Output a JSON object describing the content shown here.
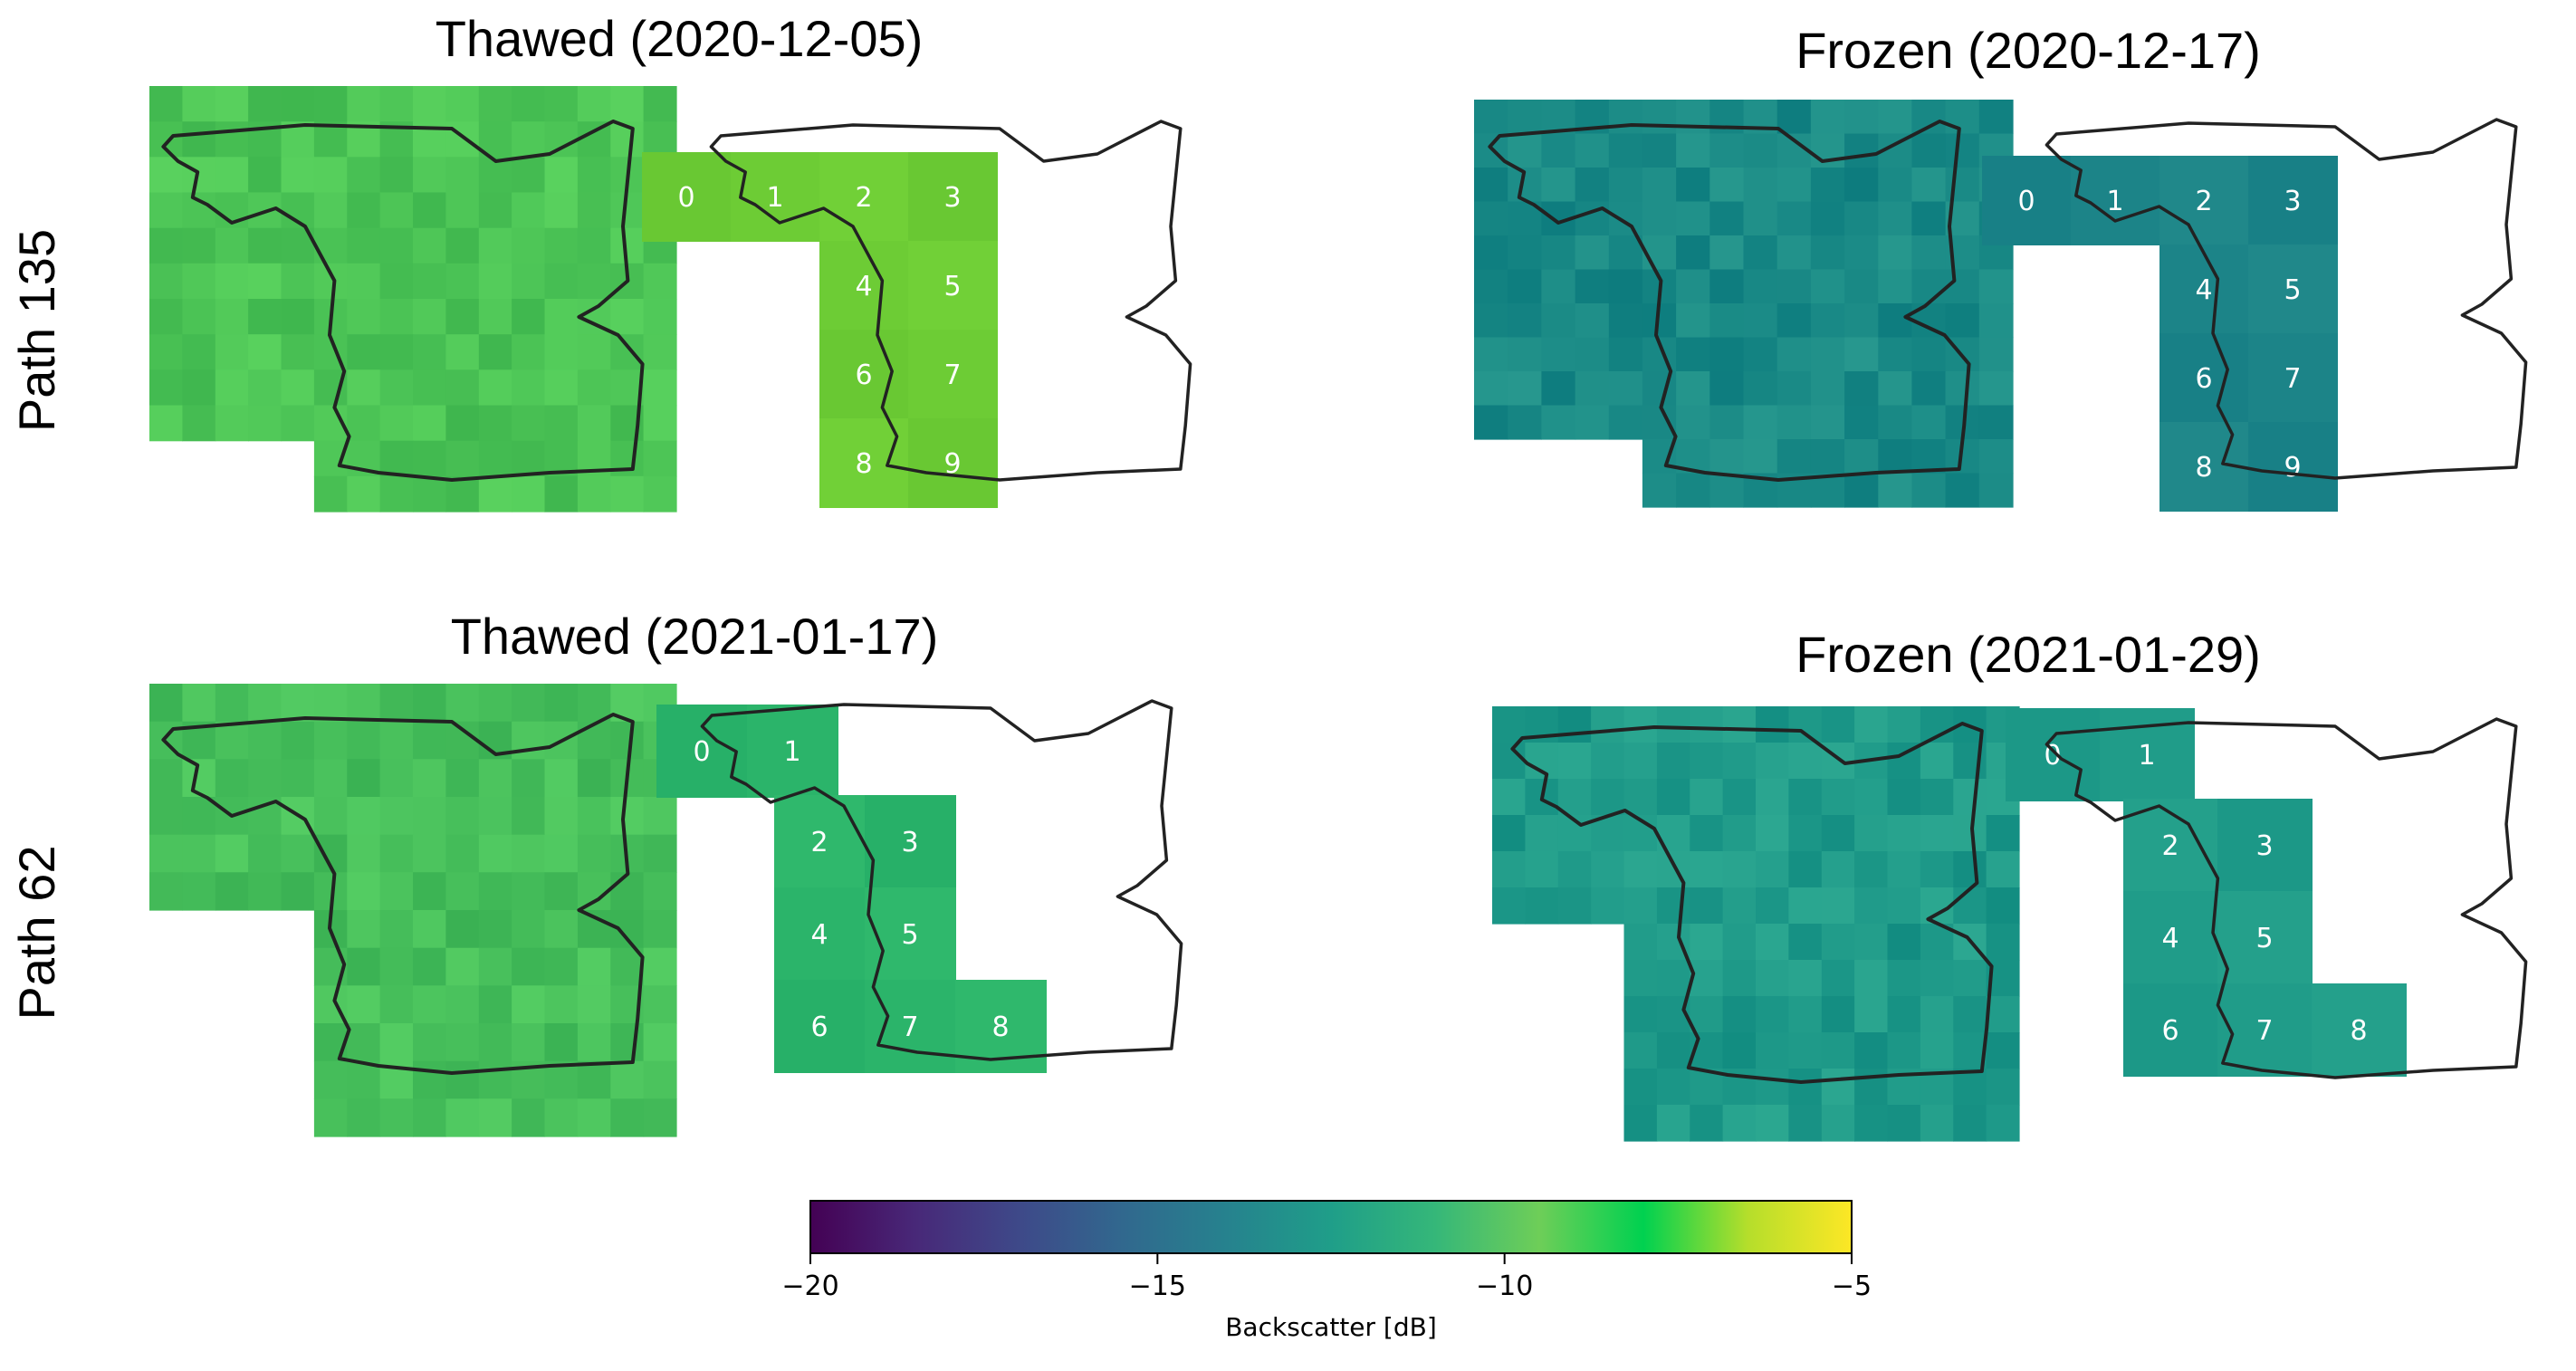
{
  "rows": [
    {
      "label": "Path 135"
    },
    {
      "label": "Path 62"
    }
  ],
  "panels": [
    {
      "title": "Thawed (2020-12-05)",
      "base_color": "#4cc456",
      "cell_color": "#6dcc35",
      "cell_labels": [
        "0",
        "1",
        "2",
        "3",
        "4",
        "5",
        "6",
        "7",
        "8",
        "9"
      ]
    },
    {
      "title": "Frozen (2020-12-17)",
      "base_color": "#1a8a86",
      "cell_color": "#1c8488",
      "cell_labels": [
        "0",
        "1",
        "2",
        "3",
        "4",
        "5",
        "6",
        "7",
        "8",
        "9"
      ]
    },
    {
      "title": "Thawed (2021-01-17)",
      "base_color": "#47bf5b",
      "cell_color": "#2bb46a",
      "cell_labels": [
        "0",
        "1",
        "2",
        "3",
        "4",
        "5",
        "6",
        "7",
        "8"
      ]
    },
    {
      "title": "Frozen (2021-01-29)",
      "base_color": "#1f9a89",
      "cell_color": "#209c89",
      "cell_labels": [
        "0",
        "1",
        "2",
        "3",
        "4",
        "5",
        "6",
        "7",
        "8"
      ]
    }
  ],
  "colorbar": {
    "label": "Backscatter [dB]",
    "min": -20,
    "max": -5,
    "ticks": [
      -20,
      -15,
      -10,
      -5
    ],
    "tick_labels": [
      "−20",
      "−15",
      "−10",
      "−5"
    ],
    "colormap": "viridis",
    "stops": [
      "#440154",
      "#482878",
      "#3e4989",
      "#31688e",
      "#26828e",
      "#1f9e89",
      "#35b779",
      "#6ece58",
      "#00d150",
      "#b5de2b",
      "#fde725"
    ]
  }
}
